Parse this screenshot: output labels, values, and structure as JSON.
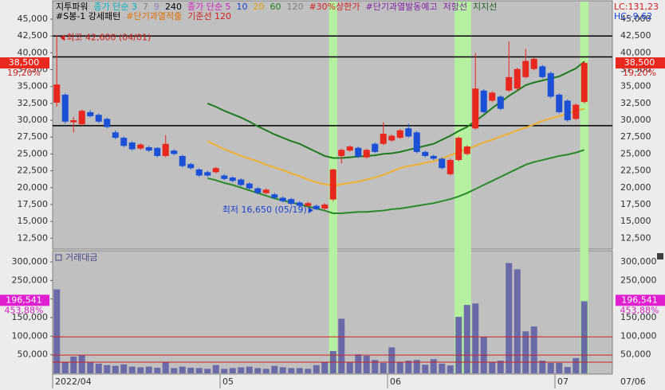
{
  "chart_data": [
    {
      "type": "candlestick",
      "title": "지투파워",
      "legend": [
        [
          {
            "text": "지투파워",
            "color": "#000000"
          },
          {
            "text": "종가 단순 3",
            "color": "#00b0c0"
          },
          {
            "text": "7",
            "color": "#808080"
          },
          {
            "text": "9",
            "color": "#9a80c0"
          },
          {
            "text": "240",
            "color": "#000000"
          },
          {
            "text": "종가 단순 5",
            "color": "#d020c0"
          },
          {
            "text": "10",
            "color": "#1a3fd0"
          },
          {
            "text": "20",
            "color": "#e0a000"
          },
          {
            "text": "60",
            "color": "#208020"
          },
          {
            "text": "120",
            "color": "#808080"
          },
          {
            "text": "#30%상한가",
            "color": "#d02020"
          },
          {
            "text": "#단기과열발동예고",
            "color": "#8020a0"
          },
          {
            "text": "저항선",
            "color": "#8020a0"
          },
          {
            "text": "지지선",
            "color": "#206020"
          }
        ],
        [
          {
            "text": "#S봉-1 강세패턴",
            "color": "#000000"
          },
          {
            "text": "#단기과열적출",
            "color": "#e07000"
          },
          {
            "text": "기준선 120",
            "color": "#d02020"
          }
        ]
      ],
      "side_labels": [
        {
          "text": "LC:131,23",
          "color": "#d02020"
        },
        {
          "text": "HC:-9,62",
          "color": "#1a3fd0"
        }
      ],
      "categories": [
        "2022/04",
        null,
        null,
        null,
        null,
        null,
        null,
        null,
        null,
        null,
        null,
        null,
        null,
        null,
        null,
        null,
        null,
        null,
        null,
        null,
        "05",
        null,
        null,
        null,
        null,
        null,
        null,
        null,
        null,
        null,
        null,
        null,
        null,
        null,
        null,
        null,
        null,
        null,
        null,
        null,
        "06",
        null,
        null,
        null,
        null,
        null,
        null,
        null,
        null,
        null,
        null,
        null,
        null,
        null,
        null,
        null,
        null,
        null,
        null,
        null,
        "07",
        null,
        null,
        null
      ],
      "open": [
        32600,
        33800,
        29700,
        29400,
        31200,
        30800,
        30200,
        28200,
        27400,
        26700,
        25800,
        26000,
        25900,
        24700,
        25500,
        24700,
        23500,
        22700,
        22300,
        22300,
        21800,
        21500,
        21200,
        20600,
        19900,
        19200,
        19000,
        18500,
        18300,
        17800,
        17300,
        17300,
        16900,
        18250,
        24700,
        25500,
        25900,
        24500,
        26500,
        26500,
        27000,
        27400,
        28800,
        28200,
        25300,
        24700,
        24300,
        22000,
        24100,
        25000,
        28800,
        34400,
        32900,
        33500,
        34400,
        34700,
        36400,
        37600,
        38000,
        37000,
        33800,
        32900,
        30200,
        32700
      ],
      "high": [
        42600,
        34000,
        30500,
        31600,
        31500,
        31000,
        30400,
        28500,
        27600,
        26900,
        26600,
        26200,
        26000,
        27800,
        25700,
        24900,
        23700,
        22900,
        22500,
        23100,
        22000,
        21700,
        21400,
        20800,
        20100,
        19900,
        19200,
        18700,
        18500,
        18000,
        17900,
        17500,
        17700,
        22800,
        25800,
        26300,
        26100,
        25800,
        26700,
        29700,
        27900,
        28700,
        29500,
        28400,
        25500,
        24900,
        24500,
        24300,
        27600,
        26300,
        40000,
        34600,
        34300,
        33700,
        41700,
        37800,
        40600,
        39300,
        38200,
        37200,
        34000,
        33100,
        32500,
        38800
      ],
      "low": [
        32000,
        29500,
        28200,
        29200,
        30400,
        29600,
        28800,
        27200,
        26000,
        25500,
        25600,
        25300,
        24500,
        24500,
        24800,
        23000,
        22700,
        21600,
        21600,
        22100,
        21100,
        20800,
        20200,
        19700,
        19000,
        19000,
        18300,
        17800,
        17400,
        17100,
        17100,
        16650,
        16700,
        18000,
        23600,
        25300,
        24400,
        24300,
        25100,
        26300,
        26800,
        27200,
        27400,
        25100,
        24500,
        24100,
        22700,
        21800,
        23900,
        24800,
        28600,
        31000,
        32700,
        31500,
        34200,
        34500,
        36200,
        37400,
        36200,
        33300,
        31000,
        29800,
        30000,
        32500
      ],
      "close": [
        35300,
        29800,
        30000,
        31400,
        30600,
        29800,
        29000,
        27400,
        26200,
        25700,
        26400,
        25500,
        24700,
        26500,
        25000,
        23200,
        22900,
        21800,
        21800,
        22900,
        21300,
        21000,
        20400,
        19900,
        19200,
        19700,
        18500,
        18000,
        17600,
        17300,
        17700,
        16800,
        17500,
        22700,
        25600,
        26100,
        24600,
        25600,
        25300,
        28000,
        27700,
        28500,
        27600,
        25300,
        24700,
        24300,
        22900,
        24100,
        27400,
        26100,
        34700,
        31200,
        34100,
        31700,
        36400,
        37600,
        38800,
        39100,
        36400,
        33500,
        31200,
        30000,
        32300,
        38500
      ],
      "up_color": "#e8281e",
      "down_color": "#1a4fd6",
      "ylim": [
        11000,
        47600
      ],
      "yticks": [
        {
          "value": 45000,
          "label": "45,000"
        },
        {
          "value": 42500,
          "label": "42,500"
        },
        {
          "value": 40000,
          "label": "40,000"
        },
        {
          "value": 37500,
          "label": "37,500"
        },
        {
          "value": 35000,
          "label": "35,000"
        },
        {
          "value": 32500,
          "label": "32,500"
        },
        {
          "value": 30000,
          "label": "30,000"
        },
        {
          "value": 27500,
          "label": "27,500"
        },
        {
          "value": 25000,
          "label": "25,000"
        },
        {
          "value": 22500,
          "label": "22,500"
        },
        {
          "value": 20000,
          "label": "20,000"
        },
        {
          "value": 17500,
          "label": "17,500"
        },
        {
          "value": 15000,
          "label": "15,000"
        },
        {
          "value": 12500,
          "label": "12,500"
        }
      ],
      "highlight_indices": [
        33,
        48,
        49,
        63
      ],
      "highlight_color": "#b4f0a0",
      "hlines": [
        42500,
        39400,
        29200
      ],
      "lines": [
        {
          "color": "#1f7a1f",
          "values": [
            null,
            null,
            null,
            null,
            null,
            null,
            null,
            null,
            null,
            null,
            null,
            null,
            null,
            null,
            null,
            null,
            null,
            null,
            32500,
            32000,
            31400,
            30900,
            30400,
            29800,
            29100,
            28500,
            27900,
            27400,
            26900,
            26500,
            25900,
            25300,
            24700,
            24400,
            24400,
            24500,
            24600,
            24700,
            24800,
            25000,
            25100,
            25300,
            25600,
            25900,
            26200,
            26500,
            27100,
            27700,
            28400,
            29000,
            29900,
            30800,
            31800,
            32700,
            33600,
            34400,
            35200,
            35600,
            35900,
            36200,
            36500,
            37100,
            37700,
            38700
          ]
        },
        {
          "color": "#f0b030",
          "values": [
            null,
            null,
            null,
            null,
            null,
            null,
            null,
            null,
            null,
            null,
            null,
            null,
            null,
            null,
            null,
            null,
            null,
            null,
            26900,
            26300,
            25700,
            25200,
            24700,
            24300,
            23900,
            23400,
            23000,
            22600,
            22100,
            21700,
            21200,
            20800,
            20500,
            20300,
            20500,
            20700,
            20900,
            21200,
            21500,
            21900,
            22400,
            22900,
            23200,
            23400,
            23700,
            23900,
            24300,
            24800,
            25300,
            25700,
            26200,
            26700,
            27100,
            27600,
            28000,
            28500,
            28900,
            29400,
            29900,
            30300,
            30600,
            31000,
            31400,
            31700
          ]
        },
        {
          "color": "#2a8a2a",
          "values": [
            null,
            null,
            null,
            null,
            null,
            null,
            null,
            null,
            null,
            null,
            null,
            null,
            null,
            null,
            null,
            null,
            null,
            null,
            21400,
            21100,
            20700,
            20400,
            20000,
            19600,
            19200,
            18800,
            18400,
            18100,
            17800,
            17500,
            17200,
            16900,
            16600,
            16200,
            16200,
            16300,
            16400,
            16400,
            16500,
            16600,
            16800,
            16900,
            17100,
            17300,
            17500,
            17700,
            18000,
            18300,
            18700,
            19200,
            19800,
            20400,
            21000,
            21600,
            22200,
            22800,
            23400,
            23800,
            24100,
            24400,
            24700,
            24900,
            25200,
            25600
          ]
        }
      ],
      "annotations": [
        {
          "text": "최고 42,600 (04/01)",
          "index": 0,
          "value": 42600,
          "color": "#d02020"
        },
        {
          "text": "최저 16,650 (05/19)",
          "index": 31,
          "value": 16650,
          "color": "#1a3fd0"
        }
      ],
      "last_price": {
        "value": 38500,
        "label": "38,500"
      },
      "last_change": "19,20%"
    },
    {
      "type": "bar",
      "title": "거래대금",
      "color": "#6a6aa8",
      "values": [
        226000,
        30000,
        45000,
        49000,
        30000,
        26000,
        22000,
        20000,
        24000,
        18000,
        16000,
        18000,
        15000,
        30000,
        14000,
        18000,
        15000,
        14000,
        12000,
        22000,
        12000,
        14000,
        16000,
        18000,
        14000,
        12000,
        20000,
        16000,
        14000,
        14000,
        12000,
        22000,
        30000,
        60000,
        147000,
        30000,
        51000,
        47000,
        36000,
        28000,
        70000,
        30000,
        34000,
        36000,
        23000,
        38000,
        26000,
        21000,
        152000,
        184000,
        188000,
        98000,
        30000,
        34000,
        297000,
        280000,
        113000,
        126000,
        34000,
        28000,
        28000,
        17000,
        41000,
        194000
      ],
      "ylim": [
        0,
        328000
      ],
      "yticks": [
        {
          "value": 50000,
          "label": "50,000"
        },
        {
          "value": 100000,
          "label": "100,000"
        },
        {
          "value": 150000,
          "label": "150,000"
        },
        {
          "value": 200000,
          "label": "200,000"
        },
        {
          "value": 250000,
          "label": "250,000"
        },
        {
          "value": 300000,
          "label": "300,000"
        }
      ],
      "ref_lines": [
        98000,
        49000,
        30000
      ],
      "last_value": {
        "value": 196541,
        "label": "196,541"
      },
      "last_change": "453,88%",
      "end_date": "07/06"
    }
  ]
}
